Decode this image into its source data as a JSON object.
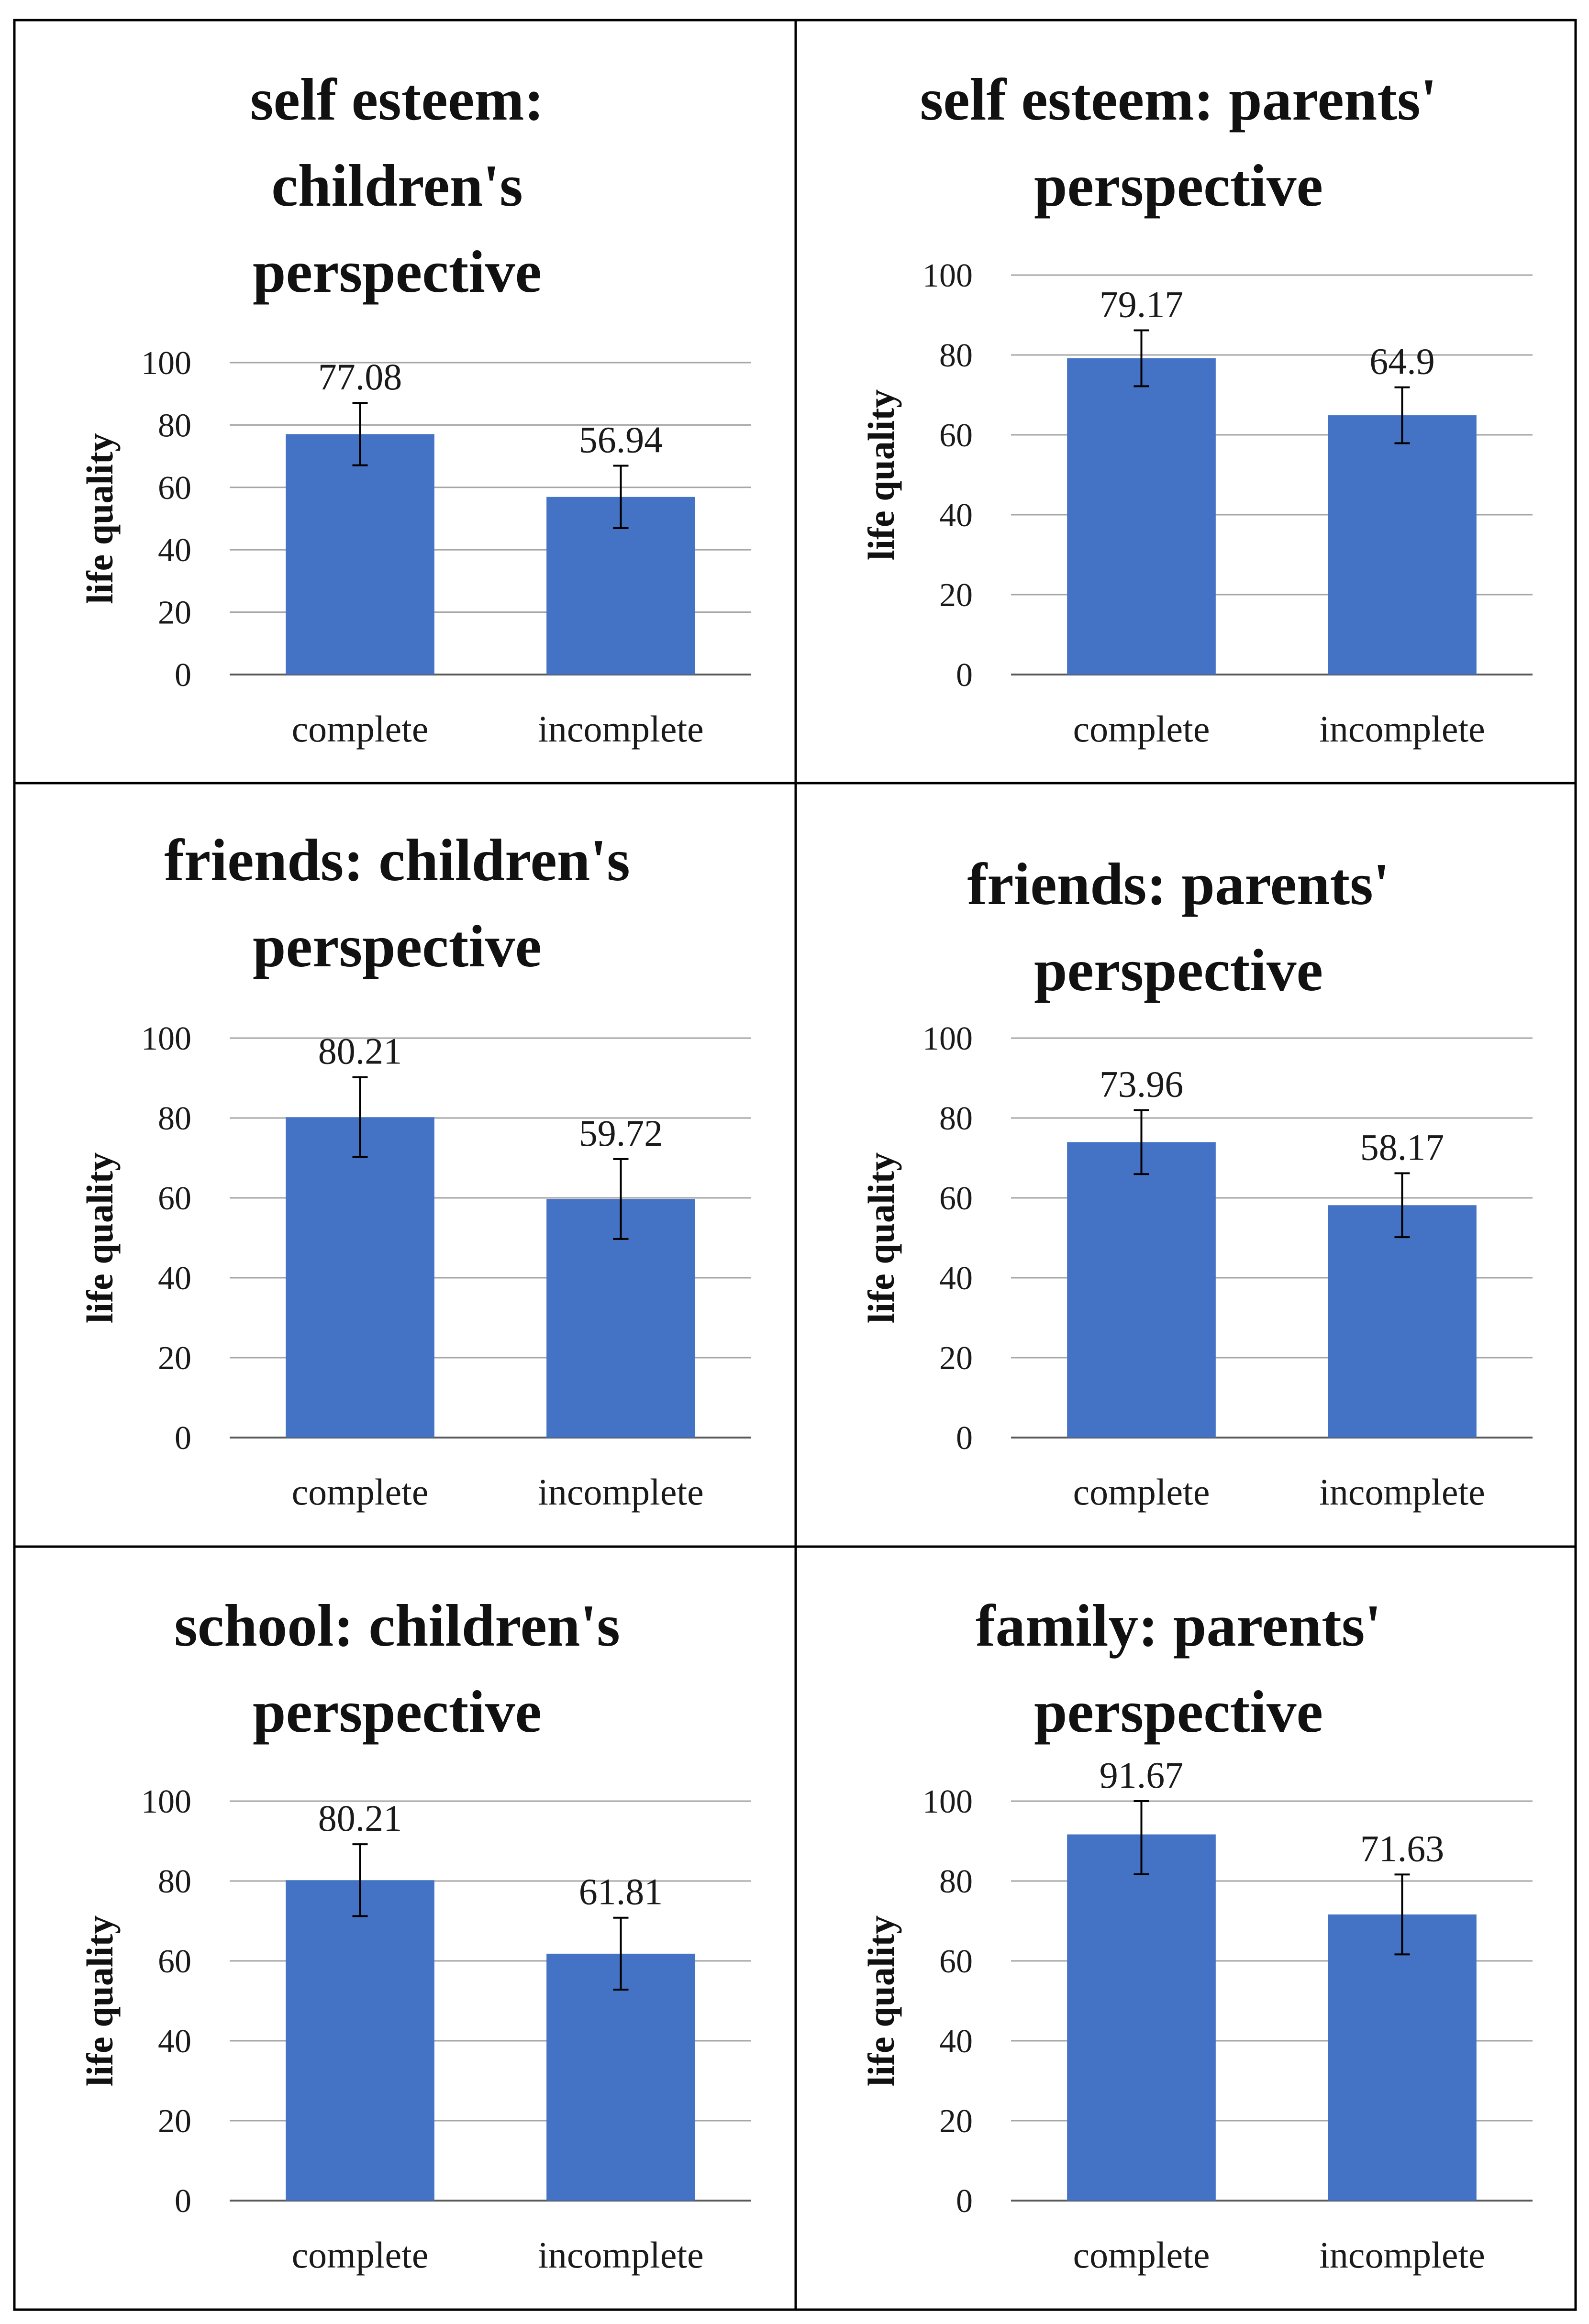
{
  "figure": {
    "bar_color": "#4472C4",
    "grid_color": "#a6a6a6",
    "border_color": "#000000"
  },
  "chart_data": [
    {
      "type": "bar",
      "title_lines": [
        "self esteem:",
        "children's",
        "perspective"
      ],
      "ylabel": "life quality",
      "categories": [
        "complete",
        "incomplete"
      ],
      "values": [
        77.08,
        56.94
      ],
      "value_labels": [
        "77.08",
        "56.94"
      ],
      "error": [
        10,
        10
      ],
      "ylim": [
        0,
        100
      ],
      "yticks": [
        0,
        20,
        40,
        60,
        80,
        100
      ],
      "grid": true
    },
    {
      "type": "bar",
      "title_lines": [
        "self esteem: parents'",
        "perspective"
      ],
      "ylabel": "life quality",
      "categories": [
        "complete",
        "incomplete"
      ],
      "values": [
        79.17,
        64.9
      ],
      "value_labels": [
        "79.17",
        "64.9"
      ],
      "error": [
        7,
        7
      ],
      "ylim": [
        0,
        100
      ],
      "yticks": [
        0,
        20,
        40,
        60,
        80,
        100
      ],
      "grid": true
    },
    {
      "type": "bar",
      "title_lines": [
        "friends: children's",
        "perspective"
      ],
      "ylabel": "life quality",
      "categories": [
        "complete",
        "incomplete"
      ],
      "values": [
        80.21,
        59.72
      ],
      "value_labels": [
        "80.21",
        "59.72"
      ],
      "error": [
        10,
        10
      ],
      "ylim": [
        0,
        100
      ],
      "yticks": [
        0,
        20,
        40,
        60,
        80,
        100
      ],
      "grid": true
    },
    {
      "type": "bar",
      "title_lines": [
        "friends:  parents'",
        "perspective"
      ],
      "ylabel": "life quality",
      "categories": [
        "complete",
        "incomplete"
      ],
      "values": [
        73.96,
        58.17
      ],
      "value_labels": [
        "73.96",
        "58.17"
      ],
      "error": [
        8,
        8
      ],
      "ylim": [
        0,
        100
      ],
      "yticks": [
        0,
        20,
        40,
        60,
        80,
        100
      ],
      "grid": true
    },
    {
      "type": "bar",
      "title_lines": [
        "school: children's",
        "perspective"
      ],
      "ylabel": "life quality",
      "categories": [
        "complete",
        "incomplete"
      ],
      "values": [
        80.21,
        61.81
      ],
      "value_labels": [
        "80.21",
        "61.81"
      ],
      "error": [
        9,
        9
      ],
      "ylim": [
        0,
        100
      ],
      "yticks": [
        0,
        20,
        40,
        60,
        80,
        100
      ],
      "grid": true
    },
    {
      "type": "bar",
      "title_lines": [
        "family:  parents'",
        "perspective"
      ],
      "ylabel": "life quality",
      "categories": [
        "complete",
        "incomplete"
      ],
      "values": [
        91.67,
        71.63
      ],
      "value_labels": [
        "91.67",
        "71.63"
      ],
      "error": [
        10,
        10
      ],
      "ylim": [
        0,
        100
      ],
      "yticks": [
        0,
        20,
        40,
        60,
        80,
        100
      ],
      "grid": true
    }
  ]
}
